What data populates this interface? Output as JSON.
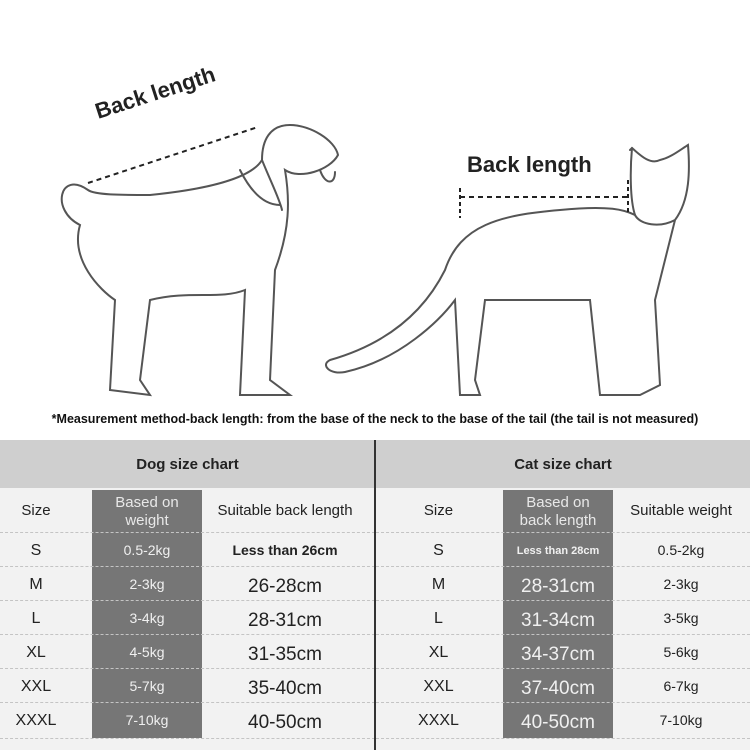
{
  "illustration": {
    "dog_label": "Back length",
    "cat_label": "Back length"
  },
  "note": "*Measurement method-back length: from the base of the neck to the base of the tail (the tail is not measured)",
  "dog_chart": {
    "title": "Dog size chart",
    "headers": [
      "Size",
      "Based on weight",
      "Suitable back length"
    ],
    "rows": [
      [
        "S",
        "0.5-2kg",
        "Less than 26cm"
      ],
      [
        "M",
        "2-3kg",
        "26-28cm"
      ],
      [
        "L",
        "3-4kg",
        "28-31cm"
      ],
      [
        "XL",
        "4-5kg",
        "31-35cm"
      ],
      [
        "XXL",
        "5-7kg",
        "35-40cm"
      ],
      [
        "XXXL",
        "7-10kg",
        "40-50cm"
      ]
    ]
  },
  "cat_chart": {
    "title": "Cat size chart",
    "headers": [
      "Size",
      "Based on back length",
      "Suitable weight"
    ],
    "rows": [
      [
        "S",
        "Less than 28cm",
        "0.5-2kg"
      ],
      [
        "M",
        "28-31cm",
        "2-3kg"
      ],
      [
        "L",
        "31-34cm",
        "3-5kg"
      ],
      [
        "XL",
        "34-37cm",
        "5-6kg"
      ],
      [
        "XXL",
        "37-40cm",
        "6-7kg"
      ],
      [
        "XXXL",
        "40-50cm",
        "7-10kg"
      ]
    ]
  },
  "colors": {
    "band": "#cfcfcf",
    "highlight_column": "#767676",
    "panel": "#f2f2f2"
  }
}
